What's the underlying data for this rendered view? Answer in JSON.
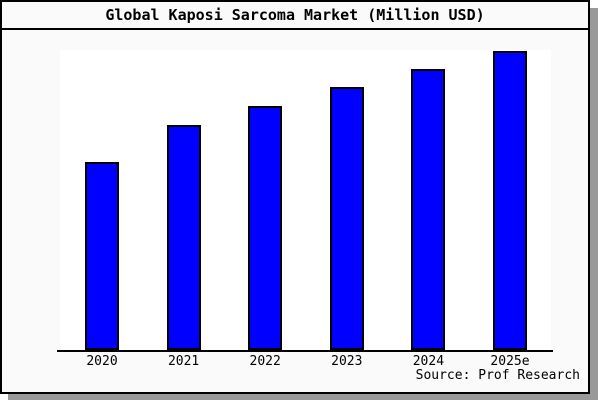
{
  "title": "Global Kaposi Sarcoma Market (Million USD)",
  "source_text": "Source: Prof Research",
  "colors": {
    "bar_fill": "#0000ff",
    "bar_border": "#000000",
    "frame_background": "#fafafa",
    "plot_background": "#ffffff",
    "frame_border": "#000000",
    "shadow": "#999999"
  },
  "chart_data": {
    "type": "bar",
    "title": "Global Kaposi Sarcoma Market (Million USD)",
    "categories": [
      "2020",
      "2021",
      "2022",
      "2023",
      "2024",
      "2025e"
    ],
    "values_percent_of_max": [
      62.9,
      75.3,
      81.6,
      88,
      94,
      100
    ],
    "xlabel": "",
    "ylabel": "",
    "value_axis_labels_visible": false,
    "grid": false,
    "legend": false
  }
}
